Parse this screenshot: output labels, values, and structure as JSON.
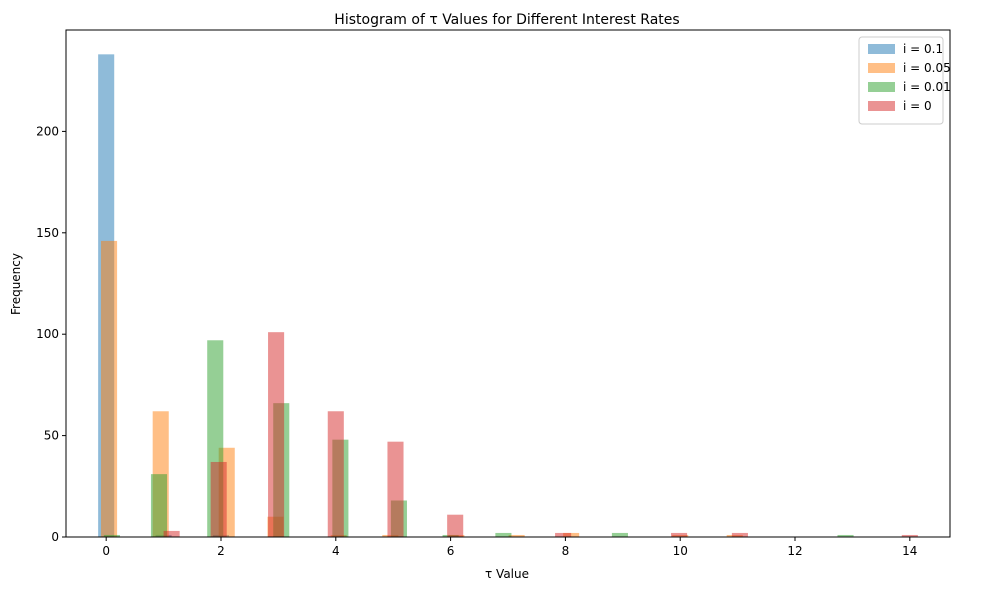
{
  "chart_data": {
    "type": "bar",
    "title": "Histogram of τ Values for Different Interest Rates",
    "xlabel": "τ Value",
    "ylabel": "Frequency",
    "xlim": [
      -0.7,
      14.7
    ],
    "ylim": [
      0,
      250
    ],
    "xticks": [
      0,
      2,
      4,
      6,
      8,
      10,
      12,
      14
    ],
    "yticks": [
      0,
      50,
      100,
      150,
      200
    ],
    "grid": false,
    "legend_position": "top-right",
    "bin_width": 0.28,
    "series": [
      {
        "name": "i = 0.1",
        "color": "#1f77b4",
        "bins": [
          {
            "x": 0.0,
            "value": 238
          },
          {
            "x": 1.0,
            "value": 1
          },
          {
            "x": 2.0,
            "value": 1
          }
        ]
      },
      {
        "name": "i = 0.05",
        "color": "#ff7f0e",
        "bins": [
          {
            "x": 0.05,
            "value": 146
          },
          {
            "x": 0.95,
            "value": 62
          },
          {
            "x": 2.1,
            "value": 44
          },
          {
            "x": 2.95,
            "value": 10
          },
          {
            "x": 4.05,
            "value": 1
          },
          {
            "x": 4.95,
            "value": 1
          },
          {
            "x": 6.1,
            "value": 1
          },
          {
            "x": 7.15,
            "value": 1
          },
          {
            "x": 8.1,
            "value": 2
          },
          {
            "x": 10.0,
            "value": 1
          },
          {
            "x": 10.95,
            "value": 1
          }
        ]
      },
      {
        "name": "i = 0.01",
        "color": "#2ca02c",
        "bins": [
          {
            "x": 0.1,
            "value": 1
          },
          {
            "x": 0.92,
            "value": 31
          },
          {
            "x": 1.9,
            "value": 97
          },
          {
            "x": 3.05,
            "value": 66
          },
          {
            "x": 4.08,
            "value": 48
          },
          {
            "x": 5.1,
            "value": 18
          },
          {
            "x": 6.0,
            "value": 1
          },
          {
            "x": 6.92,
            "value": 2
          },
          {
            "x": 8.95,
            "value": 2
          },
          {
            "x": 12.88,
            "value": 1
          }
        ]
      },
      {
        "name": "i = 0",
        "color": "#d62728",
        "bins": [
          {
            "x": 1.14,
            "value": 3
          },
          {
            "x": 1.96,
            "value": 37
          },
          {
            "x": 2.96,
            "value": 101
          },
          {
            "x": 4.0,
            "value": 62
          },
          {
            "x": 5.04,
            "value": 47
          },
          {
            "x": 6.08,
            "value": 11
          },
          {
            "x": 7.96,
            "value": 2
          },
          {
            "x": 9.98,
            "value": 2
          },
          {
            "x": 11.04,
            "value": 2
          },
          {
            "x": 14.0,
            "value": 1
          }
        ]
      }
    ]
  }
}
